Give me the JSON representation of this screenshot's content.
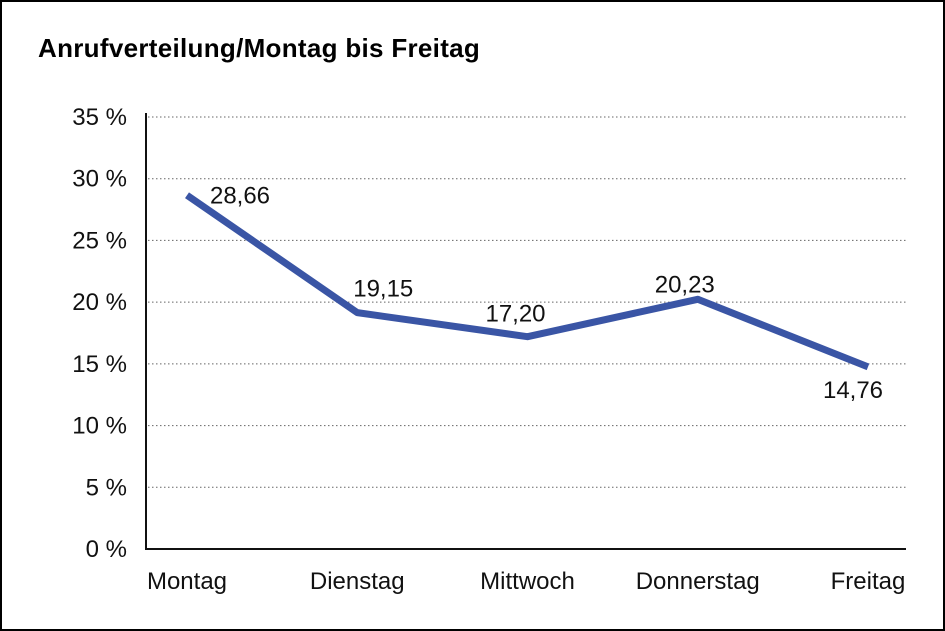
{
  "window": {
    "title": "Anrufverteilung/Montag bis Freitag"
  },
  "colors": {
    "line": "#3A55A5",
    "grid": "#666666",
    "axis": "#111111",
    "text": "#111111",
    "frame": "#000000",
    "background": "#FFFFFF"
  },
  "chart_data": {
    "type": "line",
    "title": "Anrufverteilung/Montag bis Freitag",
    "categories": [
      "Montag",
      "Dienstag",
      "Mittwoch",
      "Donnerstag",
      "Freitag"
    ],
    "series": [
      {
        "name": "Anrufverteilung",
        "values": [
          28.66,
          19.15,
          17.2,
          20.23,
          14.76
        ]
      }
    ],
    "point_labels": [
      "28,66",
      "19,15",
      "17,20",
      "20,23",
      "14,76"
    ],
    "unit": "%",
    "xlabel": "",
    "ylabel": "",
    "ylim": [
      0,
      35
    ],
    "y_ticks": [
      0,
      5,
      10,
      15,
      20,
      25,
      30,
      35
    ],
    "y_tick_labels": [
      "0 %",
      "5 %",
      "10 %",
      "15 %",
      "20 %",
      "25 %",
      "30 %",
      "35 %"
    ],
    "grid": "horizontal-dotted",
    "legend": "none"
  }
}
